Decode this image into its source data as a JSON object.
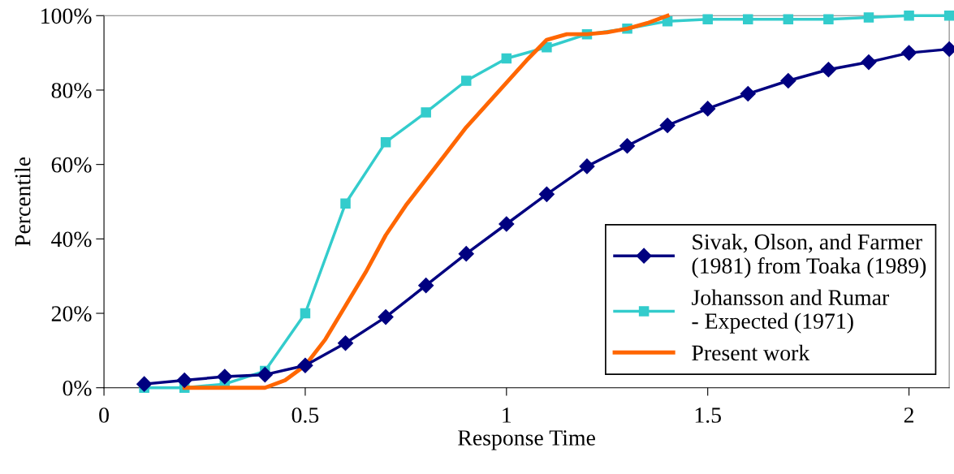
{
  "chart_data": {
    "type": "line",
    "xlabel": "Response Time",
    "ylabel": "Percentile",
    "xlim": [
      0,
      2.1
    ],
    "xticks": [
      0,
      0.5,
      1,
      1.5,
      2
    ],
    "ylim": [
      0,
      100
    ],
    "yticks": [
      {
        "value": 0,
        "label": "0%"
      },
      {
        "value": 20,
        "label": "20%"
      },
      {
        "value": 40,
        "label": "40%"
      },
      {
        "value": 60,
        "label": "60%"
      },
      {
        "value": 80,
        "label": "80%"
      },
      {
        "value": 100,
        "label": "100%"
      }
    ],
    "grid": false,
    "legend": "bottom right",
    "series": [
      {
        "name": "Sivak, Olson, and Farmer\n(1981) from Toaka (1989)",
        "color": "#000080",
        "marker": "diamond",
        "x": [
          0.1,
          0.2,
          0.3,
          0.4,
          0.5,
          0.6,
          0.7,
          0.8,
          0.9,
          1.0,
          1.1,
          1.2,
          1.3,
          1.4,
          1.5,
          1.6,
          1.7,
          1.8,
          1.9,
          2.0,
          2.1
        ],
        "values": [
          1,
          2,
          3,
          3.5,
          6,
          12,
          19,
          27.5,
          36,
          44,
          52,
          59.5,
          65,
          70.5,
          75,
          79,
          82.5,
          85.5,
          87.5,
          90,
          91
        ]
      },
      {
        "name": "Johansson and Rumar\n- Expected (1971)",
        "color": "#33cccc",
        "marker": "square",
        "x": [
          0.1,
          0.2,
          0.3,
          0.4,
          0.5,
          0.6,
          0.7,
          0.8,
          0.9,
          1.0,
          1.1,
          1.2,
          1.3,
          1.4,
          1.5,
          1.6,
          1.7,
          1.8,
          1.9,
          2.0,
          2.1
        ],
        "values": [
          0,
          0,
          1,
          4.5,
          20,
          49.5,
          66,
          74,
          82.5,
          88.5,
          91.5,
          95,
          96.5,
          98.5,
          99,
          99,
          99,
          99,
          99.5,
          100,
          100
        ]
      },
      {
        "name": "Present work",
        "color": "#ff6600",
        "marker": "none",
        "x": [
          0.2,
          0.3,
          0.35,
          0.4,
          0.45,
          0.5,
          0.55,
          0.6,
          0.65,
          0.7,
          0.75,
          0.8,
          0.85,
          0.9,
          0.95,
          1.0,
          1.05,
          1.1,
          1.15,
          1.2,
          1.25,
          1.3,
          1.35,
          1.4
        ],
        "values": [
          0,
          0,
          0,
          0,
          2,
          6,
          13,
          22,
          31,
          41,
          49,
          56,
          63,
          70,
          76,
          82,
          88,
          93.5,
          95,
          95,
          95.5,
          96.5,
          98,
          100
        ]
      }
    ]
  }
}
